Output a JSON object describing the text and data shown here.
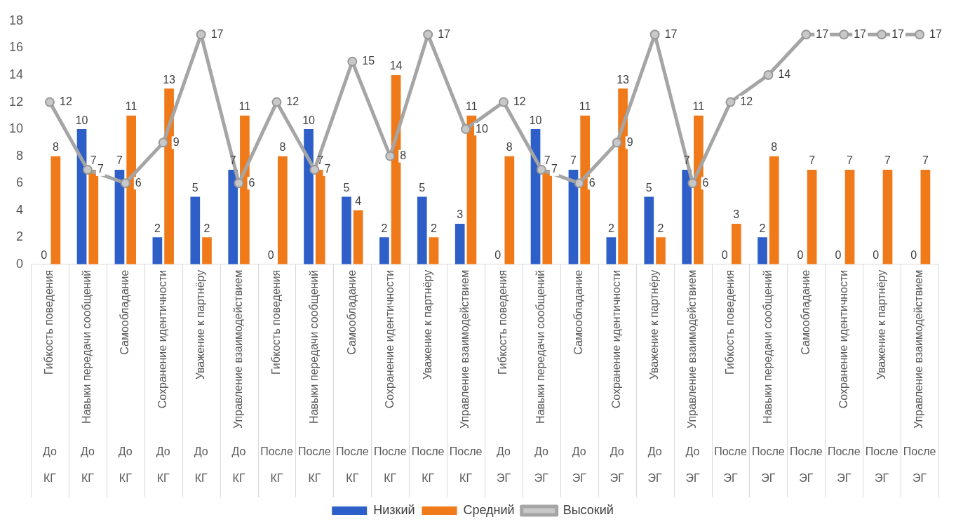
{
  "chart_data": {
    "type": "bar",
    "categories": [
      "Гибкость поведения",
      "Навыки передачи сообщений",
      "Самообладание",
      "Сохранение идентичности",
      "Уважение к партнёру",
      "Управление взаимодействием",
      "Гибкость поведения",
      "Навыки передачи сообщений",
      "Самообладание",
      "Сохранение идентичности",
      "Уважение к партнёру",
      "Управление взаимодействием",
      "Гибкость поведения",
      "Навыки передачи сообщений",
      "Самообладание",
      "Сохранение идентичности",
      "Уважение к партнёру",
      "Управление взаимодействием",
      "Гибкость поведения",
      "Навыки передачи сообщений",
      "Самообладание",
      "Сохранение идентичности",
      "Уважение к партнёру",
      "Управление взаимодействием"
    ],
    "series": [
      {
        "name": "Низкий",
        "color": "#2e5fc8",
        "values": [
          0,
          10,
          7,
          2,
          5,
          7,
          0,
          10,
          5,
          2,
          5,
          3,
          0,
          10,
          7,
          2,
          5,
          7,
          0,
          2,
          0,
          0,
          0,
          0
        ]
      },
      {
        "name": "Средний",
        "color": "#f07a1a",
        "values": [
          8,
          7,
          11,
          13,
          2,
          11,
          8,
          7,
          4,
          14,
          2,
          11,
          8,
          7,
          11,
          13,
          2,
          11,
          3,
          8,
          7,
          7,
          7,
          7
        ]
      },
      {
        "name": "Высокий",
        "type": "line",
        "color": "#a5a5a5",
        "values": [
          12,
          7,
          6,
          9,
          17,
          6,
          12,
          7,
          15,
          8,
          17,
          10,
          12,
          7,
          6,
          9,
          17,
          6,
          12,
          14,
          17,
          17,
          17,
          17
        ]
      }
    ],
    "ylim": [
      0,
      18
    ],
    "yticks": [
      0,
      2,
      4,
      6,
      8,
      10,
      12,
      14,
      16,
      18
    ],
    "grid": false,
    "legend": "bottom",
    "marker": "circle",
    "data_labels": true,
    "annotations": [
      "До",
      "До",
      "До",
      "До",
      "До",
      "До",
      "После",
      "После",
      "После",
      "После",
      "После",
      "После",
      "До",
      "До",
      "До",
      "До",
      "До",
      "До",
      "После",
      "После",
      "После",
      "После",
      "После",
      "После",
      "КГ",
      "КГ",
      "КГ",
      "КГ",
      "КГ",
      "КГ",
      "КГ",
      "КГ",
      "КГ",
      "КГ",
      "КГ",
      "КГ",
      "ЭГ",
      "ЭГ",
      "ЭГ",
      "ЭГ",
      "ЭГ",
      "ЭГ",
      "ЭГ",
      "ЭГ",
      "ЭГ",
      "ЭГ",
      "ЭГ",
      "ЭГ"
    ]
  }
}
